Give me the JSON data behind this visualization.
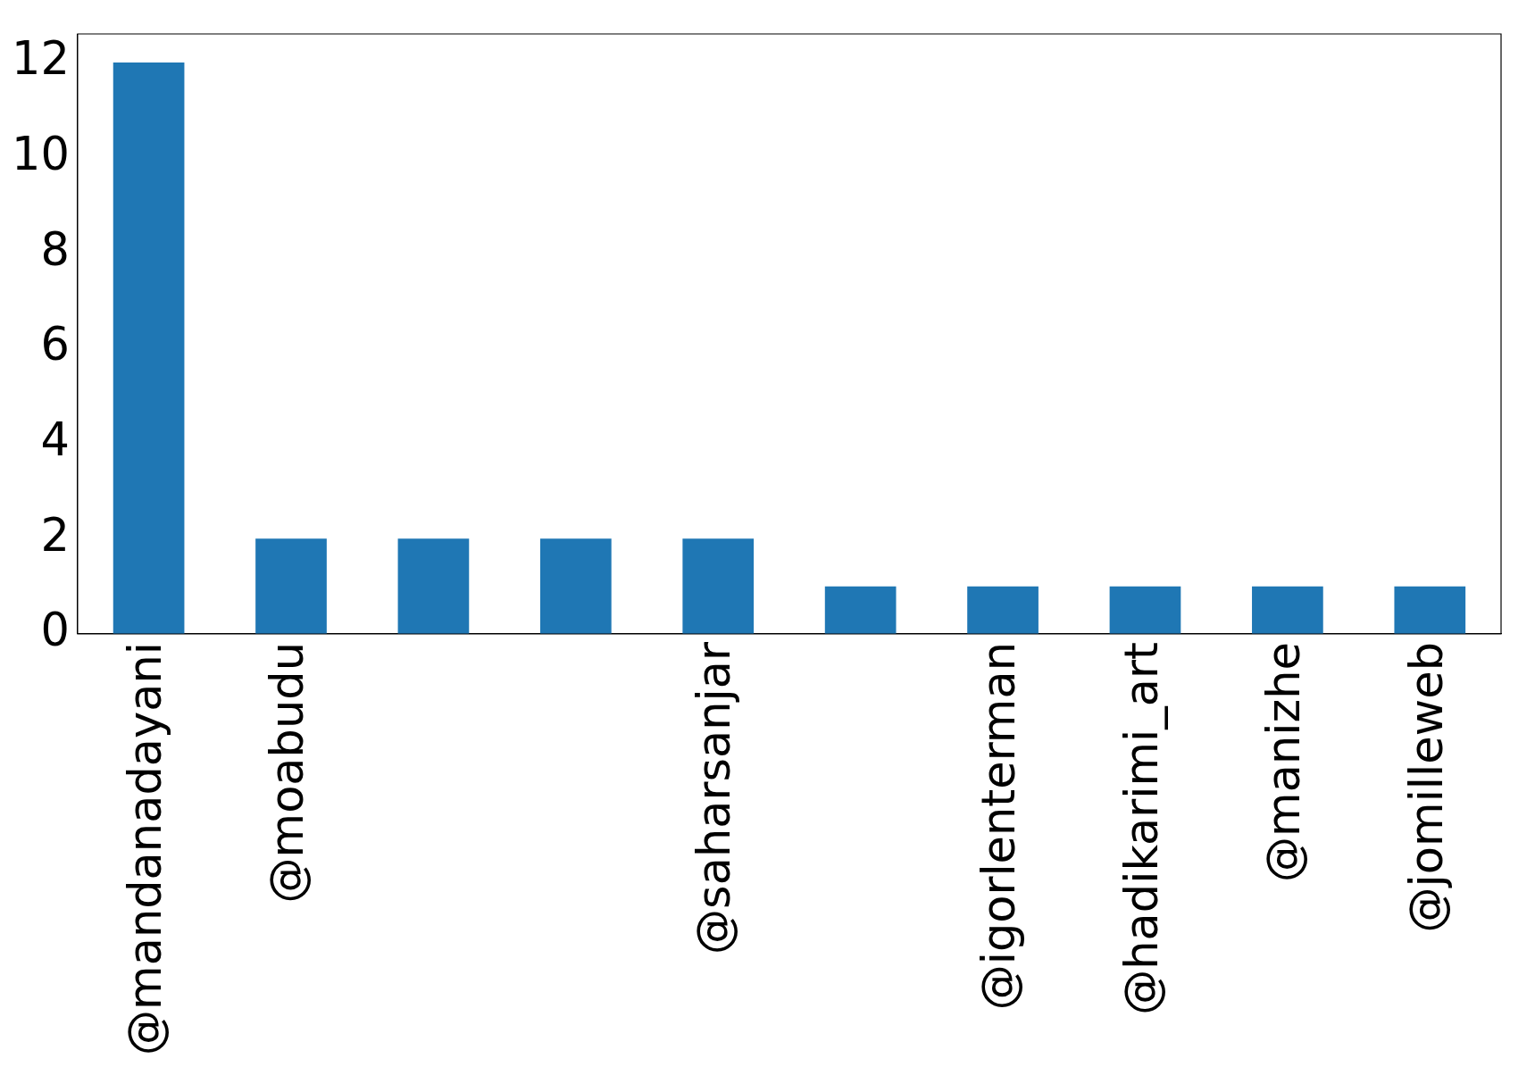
{
  "chart_data": {
    "type": "bar",
    "categories": [
      "@mandanadayani",
      "@moabudu",
      null,
      null,
      "@saharsanjar",
      null,
      "@igorlenterman",
      "@hadikarimi_art",
      "@manizhe",
      "@jomilleweb"
    ],
    "values": [
      12,
      2,
      2,
      2,
      2,
      1,
      1,
      1,
      1,
      1
    ],
    "color": "#1f77b4",
    "ylim": [
      0,
      12.6
    ],
    "yticks": [
      0,
      2,
      4,
      6,
      8,
      10,
      12
    ],
    "grid": false,
    "legend": false
  }
}
